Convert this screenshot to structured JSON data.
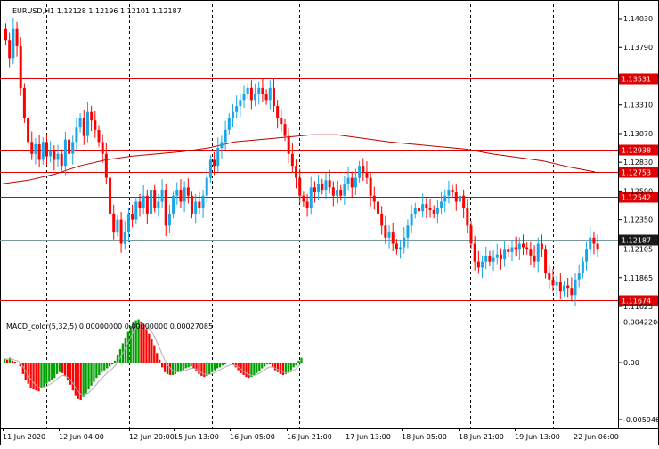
{
  "chart_data": [
    {
      "type": "candlestick",
      "title": "EURUSD,H1  1.12128 1.12196 1.12101 1.12187",
      "y_ticks": [
        "1.14030",
        "1.13790",
        "1.13310",
        "1.13070",
        "1.12830",
        "1.12590",
        "1.12350",
        "1.12105",
        "1.11865",
        "1.11625"
      ],
      "hlines": [
        {
          "price": 1.13531,
          "label": "1.13531",
          "color": "#e00000"
        },
        {
          "price": 1.12938,
          "label": "1.12938",
          "color": "#e00000"
        },
        {
          "price": 1.12753,
          "label": "1.12753",
          "color": "#e00000"
        },
        {
          "price": 1.12542,
          "label": "1.12542",
          "color": "#e00000"
        },
        {
          "price": 1.11674,
          "label": "1.11674",
          "color": "#e00000"
        }
      ],
      "current_price": {
        "price": 1.12187,
        "label": "1.12187",
        "color": "#1a1a1a"
      },
      "x_labels": [
        "11 Jun 2020",
        "12 Jun 04:00",
        "12 Jun 20:00",
        "15 Jun 13:00",
        "16 Jun 05:00",
        "16 Jun 21:00",
        "17 Jun 13:00",
        "18 Jun 05:00",
        "18 Jun 21:00",
        "19 Jun 13:00",
        "22 Jun 06:00"
      ],
      "close_path": [
        1.1385,
        1.137,
        1.1395,
        1.138,
        1.1345,
        1.132,
        1.13,
        1.129,
        1.1298,
        1.1285,
        1.13,
        1.1288,
        1.1292,
        1.1285,
        1.129,
        1.128,
        1.1302,
        1.129,
        1.13,
        1.1312,
        1.132,
        1.1305,
        1.1325,
        1.1318,
        1.131,
        1.13,
        1.129,
        1.127,
        1.124,
        1.1225,
        1.1235,
        1.1215,
        1.1225,
        1.124,
        1.1235,
        1.125,
        1.1245,
        1.1255,
        1.124,
        1.126,
        1.1245,
        1.125,
        1.126,
        1.123,
        1.124,
        1.1255,
        1.126,
        1.125,
        1.1262,
        1.1255,
        1.124,
        1.125,
        1.1245,
        1.1255,
        1.127,
        1.1285,
        1.128,
        1.1295,
        1.13,
        1.131,
        1.132,
        1.1325,
        1.133,
        1.1335,
        1.134,
        1.1345,
        1.1335,
        1.134,
        1.1345,
        1.134,
        1.1335,
        1.1345,
        1.133,
        1.132,
        1.1315,
        1.1305,
        1.129,
        1.128,
        1.127,
        1.1255,
        1.125,
        1.1245,
        1.1262,
        1.1258,
        1.1265,
        1.126,
        1.1268,
        1.1262,
        1.1255,
        1.126,
        1.1255,
        1.1265,
        1.127,
        1.1262,
        1.127,
        1.128,
        1.1275,
        1.127,
        1.1255,
        1.125,
        1.124,
        1.123,
        1.122,
        1.1225,
        1.1215,
        1.121,
        1.1212,
        1.122,
        1.123,
        1.124,
        1.1245,
        1.1242,
        1.1248,
        1.1245,
        1.1243,
        1.124,
        1.1245,
        1.125,
        1.1255,
        1.126,
        1.1258,
        1.125,
        1.1255,
        1.1245,
        1.123,
        1.1215,
        1.12,
        1.1195,
        1.12,
        1.1205,
        1.12,
        1.1203,
        1.1206,
        1.1202,
        1.121,
        1.1208,
        1.1212,
        1.121,
        1.1215,
        1.1212,
        1.121,
        1.1205,
        1.12,
        1.1215,
        1.121,
        1.119,
        1.1185,
        1.118,
        1.1183,
        1.1175,
        1.118,
        1.1178,
        1.1172,
        1.1185,
        1.119,
        1.12,
        1.121,
        1.122,
        1.1215,
        1.121
      ],
      "ma_path": [
        1.1265,
        1.1268,
        1.1273,
        1.128,
        1.1285,
        1.1288,
        1.129,
        1.1292,
        1.1295,
        1.13,
        1.1302,
        1.1304,
        1.1306,
        1.1306,
        1.1303,
        1.13,
        1.1298,
        1.1296,
        1.1294,
        1.129,
        1.1287,
        1.1284,
        1.1279,
        1.1275
      ],
      "macd_hist": [
        0.4,
        0.3,
        0.5,
        0.2,
        0.1,
        0.0,
        -0.4,
        -1.2,
        -1.8,
        -2.2,
        -2.6,
        -2.8,
        -2.9,
        -3.0,
        -2.7,
        -2.5,
        -2.2,
        -2.0,
        -1.8,
        -1.6,
        -1.2,
        -1.0,
        -1.1,
        -1.4,
        -1.8,
        -2.3,
        -2.9,
        -3.4,
        -3.8,
        -3.9,
        -3.6,
        -3.2,
        -2.8,
        -2.4,
        -2.0,
        -1.6,
        -1.3,
        -1.0,
        -0.8,
        -0.6,
        -0.4,
        -0.2,
        0.2,
        0.8,
        1.4,
        2.0,
        2.6,
        3.2,
        3.8,
        4.2,
        4.4,
        4.5,
        4.3,
        4.0,
        3.5,
        3.0,
        2.5,
        1.8,
        1.0,
        0.3,
        -0.5,
        -1.0,
        -1.2,
        -1.3,
        -1.3,
        -1.2,
        -1.0,
        -0.9,
        -0.8,
        -0.6,
        -0.5,
        -0.4,
        -0.6,
        -0.9,
        -1.2,
        -1.4,
        -1.5,
        -1.4,
        -1.2,
        -1.0,
        -0.8,
        -0.6,
        -0.5,
        -0.3,
        -0.2,
        -0.1,
        0.0,
        -0.2,
        -0.5,
        -0.8,
        -1.1,
        -1.3,
        -1.5,
        -1.6,
        -1.5,
        -1.3,
        -1.1,
        -0.9,
        -0.6,
        -0.4,
        -0.2,
        -0.2,
        -0.5,
        -0.8,
        -1.0,
        -1.2,
        -1.3,
        -1.2,
        -1.0,
        -0.8,
        -0.5,
        -0.3,
        0.2,
        0.5
      ],
      "macd_ticks": [
        {
          "label": "0.0042204",
          "value": 4.22
        },
        {
          "label": "0.00",
          "value": 0
        },
        {
          "label": "-0.005946",
          "value": -5.946
        }
      ],
      "macd_label": "MACD_color(5,32,5) 0.00000000 0.00000000 0.00027085",
      "colors": {
        "bull": "#19a6e6",
        "bear": "#ff0000",
        "ma": "#c00000",
        "hist_up": "#00a000",
        "hist_down": "#ff0000",
        "signal": "#b0b0b0",
        "grid": "#000000"
      }
    }
  ]
}
